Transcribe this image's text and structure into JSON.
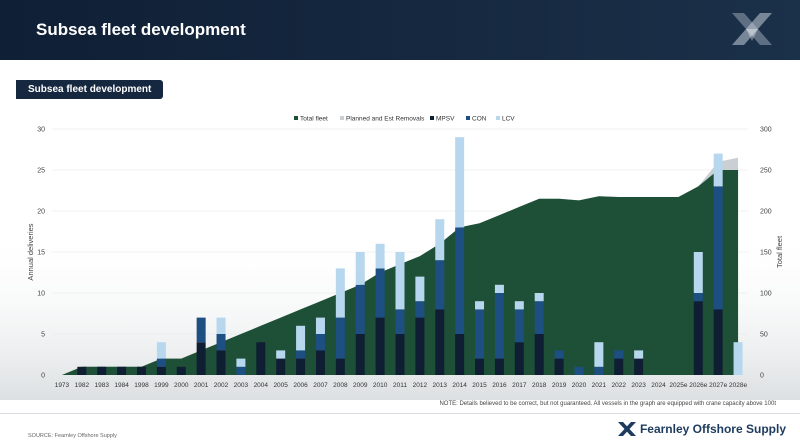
{
  "header": {
    "title": "Subsea fleet development"
  },
  "tab": {
    "label": "Subsea fleet development"
  },
  "note": "NOTE: Details believed to be correct, but not guaranteed. All vessels in the graph are equipped with crane capacity above 100t",
  "source": "SOURCE: Fearnley Offshore Supply",
  "footer": {
    "brand": "Fearnley Offshore Supply"
  },
  "colors": {
    "mpsv": "#0f1e33",
    "con": "#1d4f82",
    "lcv": "#b6d7ee",
    "planned": "#c9cfd3",
    "total": "#1e5037"
  },
  "chart_data": {
    "type": "bar",
    "legend_position": "top",
    "legend": [
      "Total fleet",
      "Planned and Est Removals",
      "MPSV",
      "CON",
      "LCV"
    ],
    "categories": [
      "1973",
      "1982",
      "1983",
      "1984",
      "1998",
      "1999",
      "2000",
      "2001",
      "2002",
      "2003",
      "2004",
      "2005",
      "2006",
      "2007",
      "2008",
      "2009",
      "2010",
      "2011",
      "2012",
      "2013",
      "2014",
      "2015",
      "2016",
      "2017",
      "2018",
      "2019",
      "2020",
      "2021",
      "2022",
      "2023",
      "2024",
      "2025e",
      "2026e",
      "2027e",
      "2028e"
    ],
    "ylabel_left": "Annual deliveries",
    "ylabel_right": "Total fleet",
    "ylim_left": [
      0,
      30
    ],
    "ylim_right": [
      0,
      300
    ],
    "yticks_left": [
      "0",
      "5",
      "10",
      "15",
      "20",
      "25",
      "30"
    ],
    "yticks_right": [
      "0",
      "50",
      "100",
      "150",
      "200",
      "250",
      "300"
    ],
    "series": [
      {
        "name": "MPSV",
        "values": [
          0,
          1,
          1,
          1,
          1,
          1,
          1,
          4,
          3,
          0,
          4,
          2,
          2,
          3,
          2,
          5,
          7,
          5,
          7,
          8,
          5,
          2,
          2,
          4,
          5,
          2,
          0,
          0,
          2,
          2,
          0,
          0,
          9,
          8,
          0
        ]
      },
      {
        "name": "CON",
        "values": [
          0,
          0,
          0,
          0,
          0,
          1,
          0,
          3,
          2,
          1,
          0,
          0,
          1,
          2,
          5,
          6,
          6,
          3,
          2,
          6,
          13,
          6,
          8,
          4,
          4,
          1,
          1,
          1,
          1,
          0,
          0,
          0,
          1,
          15,
          0
        ]
      },
      {
        "name": "LCV",
        "values": [
          0,
          0,
          0,
          0,
          0,
          2,
          0,
          0,
          2,
          1,
          0,
          1,
          3,
          2,
          6,
          4,
          3,
          7,
          3,
          5,
          11,
          1,
          1,
          1,
          1,
          0,
          0,
          3,
          0,
          1,
          0,
          0,
          5,
          4,
          4
        ]
      },
      {
        "name": "Total fleet",
        "values": [
          0,
          10,
          10,
          10,
          10,
          20,
          20,
          30,
          40,
          50,
          60,
          70,
          80,
          90,
          100,
          110,
          125,
          135,
          145,
          160,
          180,
          185,
          195,
          205,
          215,
          215,
          213,
          218,
          217,
          217,
          217,
          217,
          230,
          250,
          250
        ]
      },
      {
        "name": "Planned and Est Removals",
        "values": [
          0,
          0,
          0,
          0,
          0,
          0,
          0,
          0,
          0,
          0,
          0,
          0,
          0,
          0,
          0,
          0,
          0,
          0,
          0,
          0,
          0,
          0,
          0,
          0,
          0,
          0,
          0,
          0,
          0,
          0,
          0,
          0,
          0,
          10,
          15
        ]
      }
    ]
  }
}
